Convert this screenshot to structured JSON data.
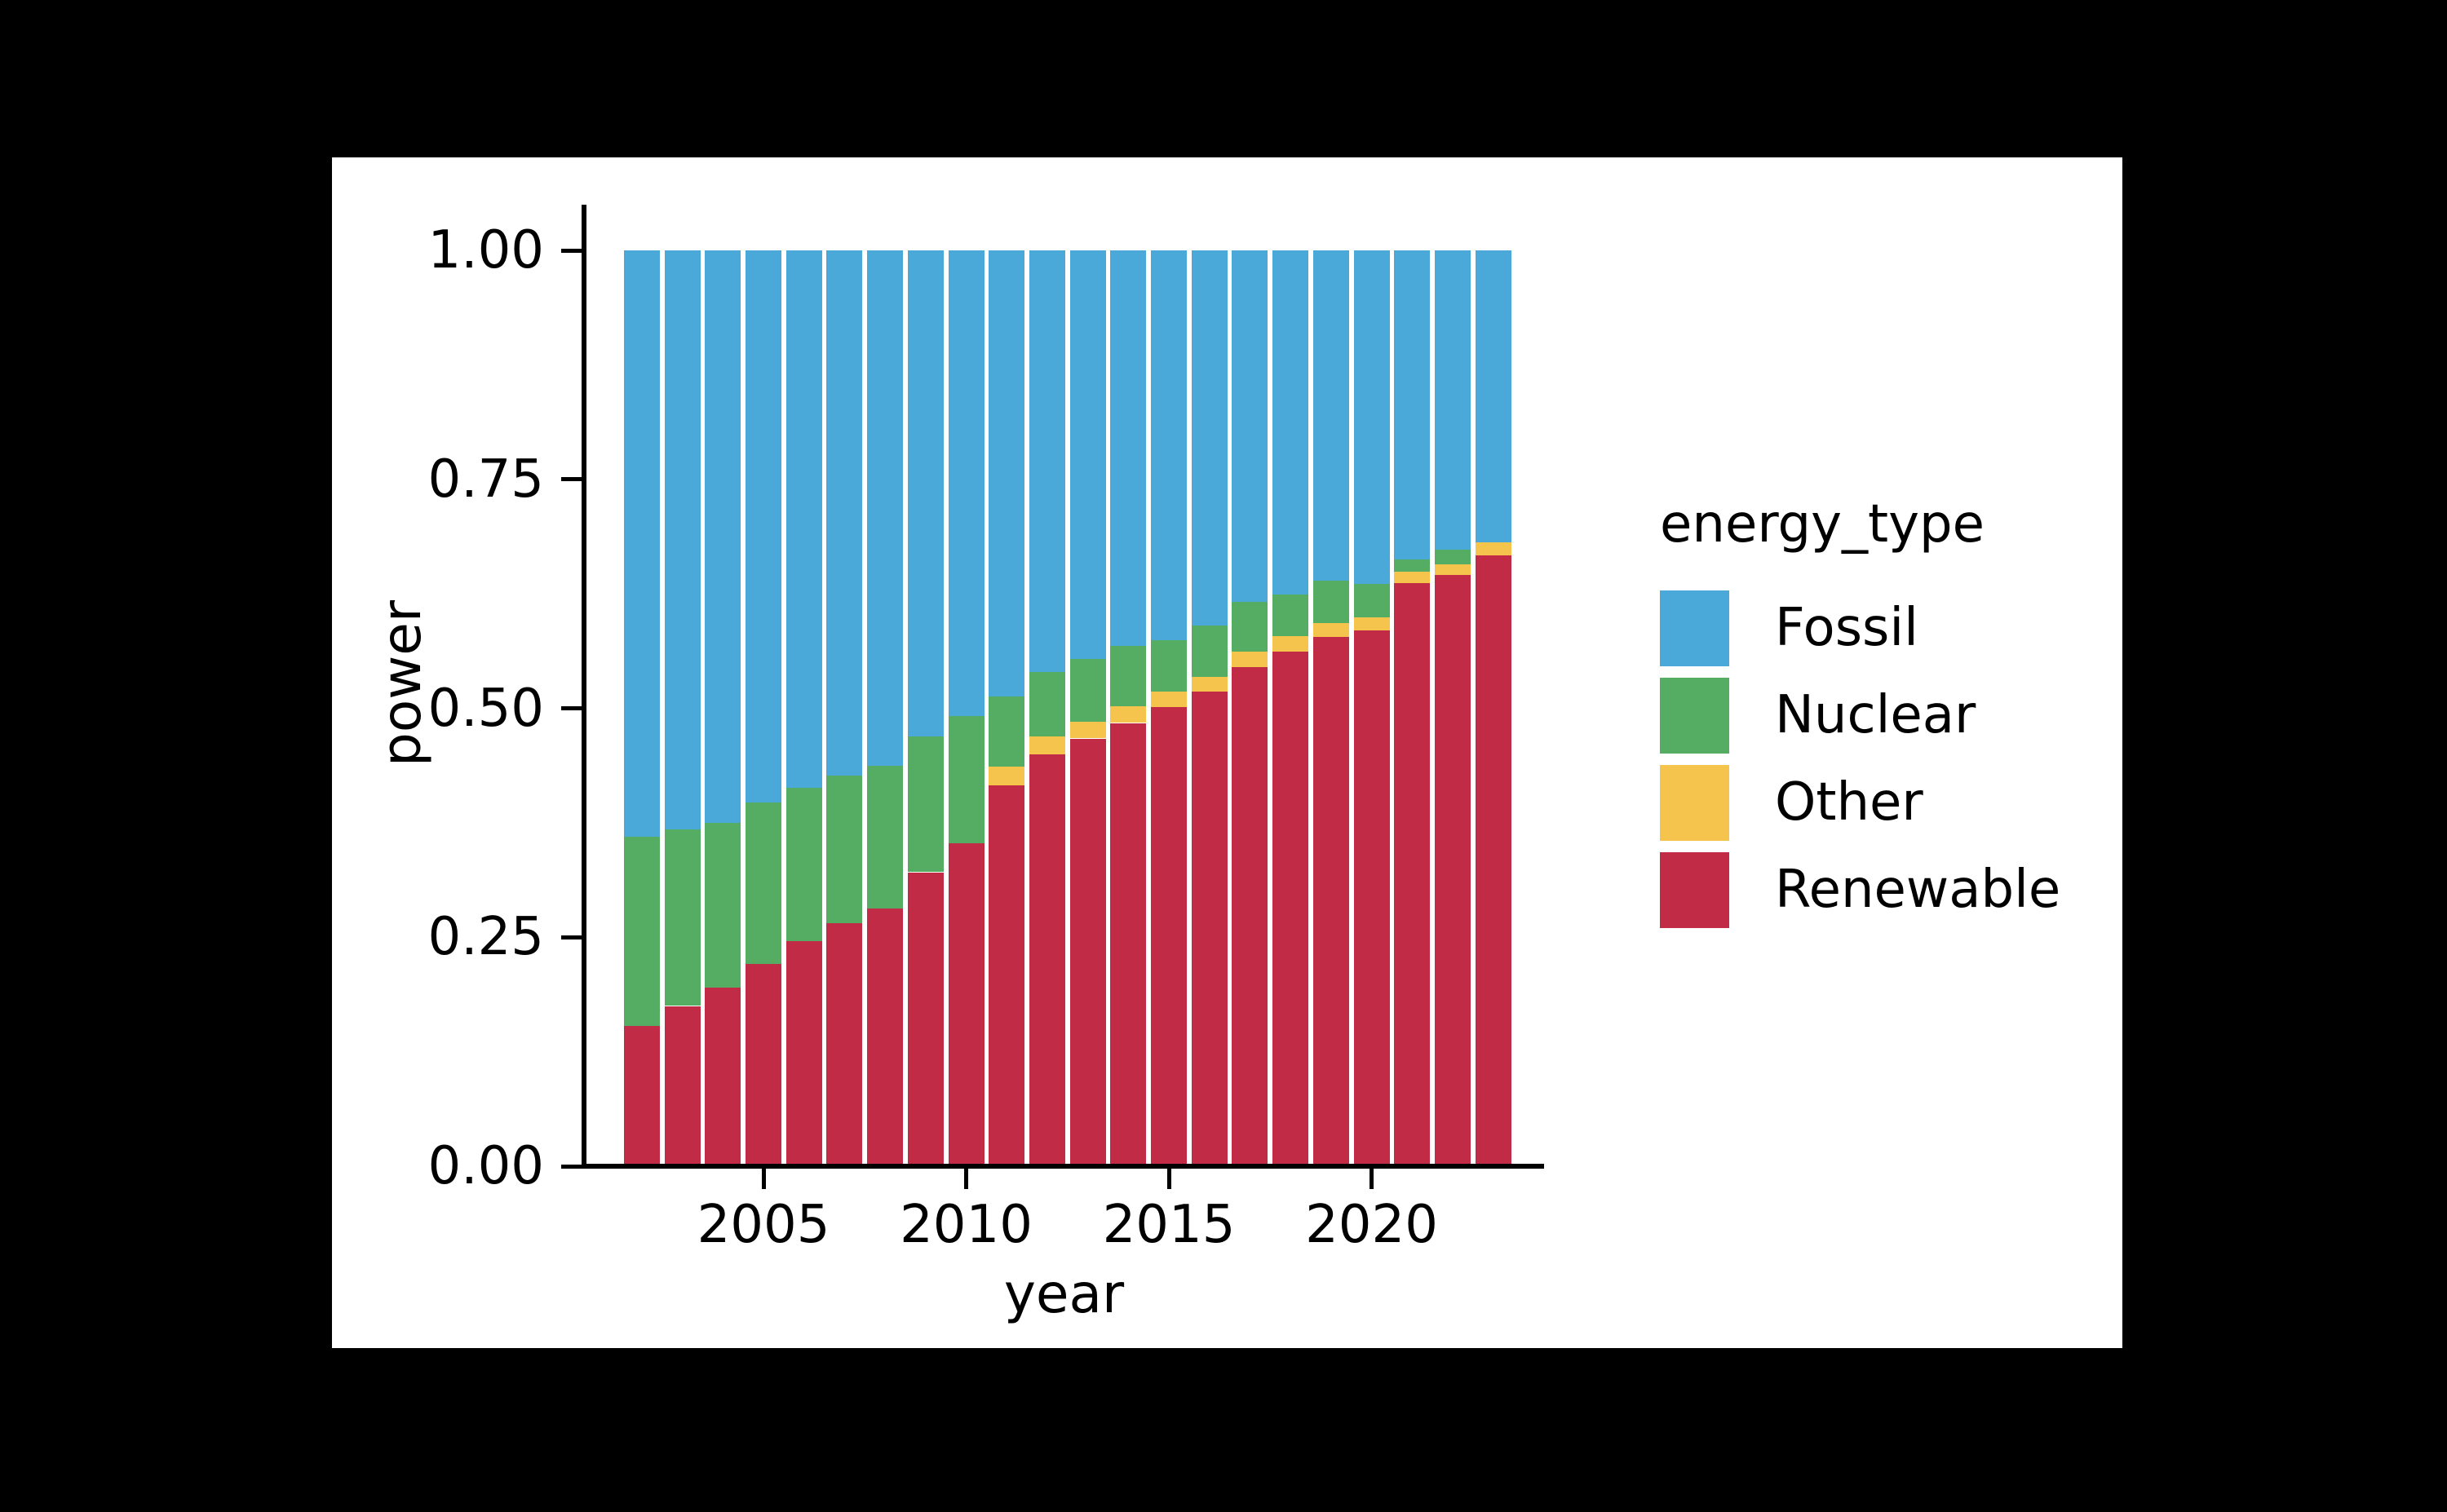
{
  "figure": {
    "background_color": "#000000",
    "panel_color": "#ffffff",
    "text_color": "#000000"
  },
  "chart_data": {
    "type": "bar",
    "stacked": true,
    "xlabel": "year",
    "ylabel": "power",
    "ylim": [
      0,
      1
    ],
    "grid": false,
    "x": [
      2002,
      2003,
      2004,
      2005,
      2006,
      2007,
      2008,
      2009,
      2010,
      2011,
      2012,
      2013,
      2014,
      2015,
      2016,
      2017,
      2018,
      2019,
      2020,
      2021,
      2022,
      2023
    ],
    "x_ticks": {
      "values": [
        2005,
        2010,
        2015,
        2020
      ],
      "labels": [
        "2005",
        "2010",
        "2015",
        "2020"
      ]
    },
    "y_ticks": {
      "values": [
        0,
        0.25,
        0.5,
        0.75,
        1.0
      ],
      "labels": [
        "0.00",
        "0.25",
        "0.50",
        "0.75",
        "1.00"
      ]
    },
    "series": [
      {
        "name": "Renewable",
        "color": "#c22b45",
        "values": [
          0.153,
          0.175,
          0.195,
          0.221,
          0.246,
          0.265,
          0.281,
          0.321,
          0.353,
          0.416,
          0.45,
          0.467,
          0.484,
          0.501,
          0.518,
          0.545,
          0.562,
          0.578,
          0.585,
          0.637,
          0.646,
          0.667
        ]
      },
      {
        "name": "Other",
        "color": "#f4c44d",
        "values": [
          0,
          0,
          0,
          0,
          0,
          0,
          0,
          0,
          0,
          0.02,
          0.019,
          0.018,
          0.018,
          0.017,
          0.016,
          0.017,
          0.017,
          0.015,
          0.014,
          0.012,
          0.011,
          0.014
        ]
      },
      {
        "name": "Nuclear",
        "color": "#54ad63",
        "values": [
          0.207,
          0.193,
          0.18,
          0.176,
          0.167,
          0.162,
          0.156,
          0.148,
          0.139,
          0.077,
          0.071,
          0.069,
          0.066,
          0.056,
          0.056,
          0.054,
          0.045,
          0.046,
          0.037,
          0.014,
          0.016,
          0
        ]
      },
      {
        "name": "Fossil",
        "color": "#4ba9d9",
        "values": [
          0.64,
          0.632,
          0.625,
          0.603,
          0.587,
          0.573,
          0.563,
          0.531,
          0.508,
          0.487,
          0.46,
          0.446,
          0.432,
          0.426,
          0.41,
          0.384,
          0.376,
          0.361,
          0.364,
          0.337,
          0.327,
          0.319
        ]
      }
    ],
    "legend": {
      "title": "energy_type",
      "position": "right",
      "entries": [
        {
          "label": "Fossil",
          "color": "#4ba9d9"
        },
        {
          "label": "Nuclear",
          "color": "#54ad63"
        },
        {
          "label": "Other",
          "color": "#f4c44d"
        },
        {
          "label": "Renewable",
          "color": "#c22b45"
        }
      ]
    }
  }
}
